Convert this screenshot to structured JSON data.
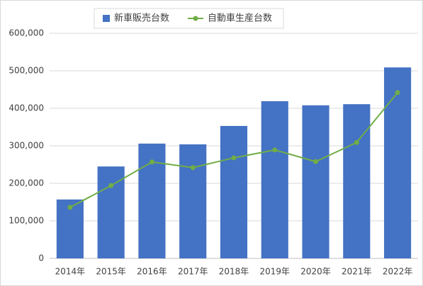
{
  "chart_data": {
    "type": "combo",
    "categories": [
      "2014年",
      "2015年",
      "2016年",
      "2017年",
      "2018年",
      "2019年",
      "2020年",
      "2021年",
      "2022年"
    ],
    "series": [
      {
        "name": "新車販売台数",
        "type": "bar",
        "color": "#4472c4",
        "values": [
          157000,
          245000,
          306000,
          304000,
          353000,
          419000,
          408000,
          411000,
          509000
        ]
      },
      {
        "name": "自動車生産台数",
        "type": "line",
        "color": "#70ad47",
        "values": [
          136000,
          194000,
          257000,
          242000,
          268000,
          289000,
          258000,
          309000,
          442000
        ]
      }
    ],
    "ylim": [
      0,
      600000
    ],
    "yticks": [
      0,
      {
        "value": 100000,
        "label": "100,000"
      },
      {
        "value": 200000,
        "label": "200,000"
      },
      {
        "value": 300000,
        "label": "300,000"
      },
      {
        "value": 400000,
        "label": "400,000"
      },
      {
        "value": 500000,
        "label": "500,000"
      },
      {
        "value": 600000,
        "label": "600,000"
      }
    ],
    "grid": true,
    "legend": "top"
  }
}
